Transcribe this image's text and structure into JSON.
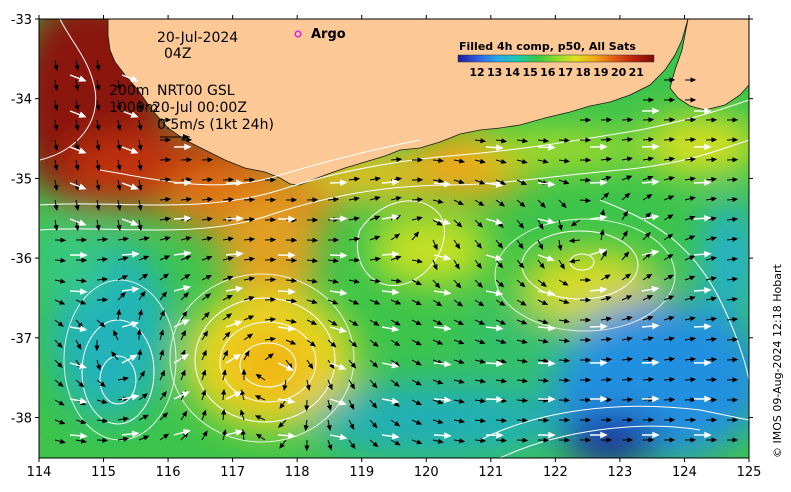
{
  "map": {
    "date_line": "20-Jul-2024",
    "time_line": "04Z",
    "depth_line1": "200m",
    "depth_line2": "1000m",
    "product_line1": "NRT00 GSL",
    "product_line2": "20-Jul 00:00Z",
    "scale_text": "0.5m/s (1kt 24h)",
    "argo_label": "Argo",
    "colorbar_title": "Filled 4h comp, p50, All Sats",
    "colorbar_ticks": [
      "12",
      "13",
      "14",
      "15",
      "16",
      "17",
      "18",
      "19",
      "20",
      "21"
    ],
    "colorbar_colors": [
      "#1a1aa0",
      "#2f5fe0",
      "#28a8e8",
      "#1ec8b4",
      "#36c846",
      "#8cdc2a",
      "#e0e020",
      "#f0a818",
      "#e05a14",
      "#b8200c",
      "#7a0a06"
    ],
    "credit": "© IMOS 09-Aug-2024 12:18 Hobart",
    "land_color": "#fcc896",
    "lon_ticks": [
      "114",
      "115",
      "116",
      "117",
      "118",
      "119",
      "120",
      "121",
      "122",
      "123",
      "124",
      "125"
    ],
    "lat_ticks": [
      "-33",
      "-34",
      "-35",
      "-36",
      "-37",
      "-38"
    ]
  }
}
